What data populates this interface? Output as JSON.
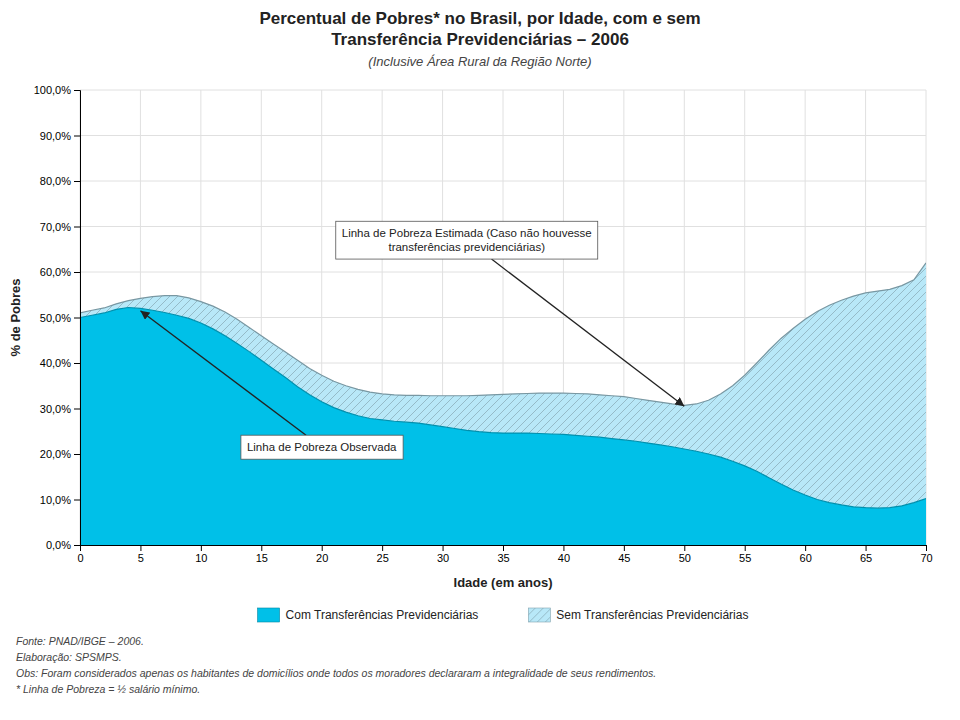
{
  "chart_data": {
    "type": "area",
    "title": [
      "Percentual de Pobres* no Brasil, por Idade, com e sem",
      "Transferência Previdenciárias – 2006"
    ],
    "subtitle": "(Inclusive Área Rural da Região Norte)",
    "x_label": "Idade (em anos)",
    "y_label": "% de Pobres",
    "x": [
      0,
      1,
      2,
      3,
      4,
      5,
      6,
      7,
      8,
      9,
      10,
      11,
      12,
      13,
      14,
      15,
      16,
      17,
      18,
      19,
      20,
      21,
      22,
      23,
      24,
      25,
      26,
      27,
      28,
      29,
      30,
      31,
      32,
      33,
      34,
      35,
      36,
      37,
      38,
      39,
      40,
      41,
      42,
      43,
      44,
      45,
      46,
      47,
      48,
      49,
      50,
      51,
      52,
      53,
      54,
      55,
      56,
      57,
      58,
      59,
      60,
      61,
      62,
      63,
      64,
      65,
      66,
      67,
      68,
      69,
      70
    ],
    "series": [
      {
        "name": "Com Transferências Previdenciárias",
        "color": "#00C0E8",
        "values": [
          0.5,
          0.505,
          0.51,
          0.518,
          0.522,
          0.52,
          0.516,
          0.511,
          0.505,
          0.498,
          0.488,
          0.475,
          0.46,
          0.443,
          0.425,
          0.406,
          0.387,
          0.368,
          0.348,
          0.33,
          0.315,
          0.302,
          0.292,
          0.284,
          0.278,
          0.275,
          0.272,
          0.27,
          0.268,
          0.264,
          0.26,
          0.256,
          0.252,
          0.249,
          0.247,
          0.246,
          0.246,
          0.246,
          0.245,
          0.244,
          0.243,
          0.241,
          0.239,
          0.237,
          0.234,
          0.231,
          0.228,
          0.224,
          0.22,
          0.216,
          0.211,
          0.206,
          0.2,
          0.193,
          0.184,
          0.174,
          0.162,
          0.148,
          0.134,
          0.121,
          0.11,
          0.1,
          0.093,
          0.088,
          0.084,
          0.082,
          0.081,
          0.082,
          0.086,
          0.093,
          0.102
        ]
      },
      {
        "name": "Sem Transferências Previdenciárias",
        "color": "#B8E8F8",
        "values": [
          0.51,
          0.516,
          0.521,
          0.53,
          0.537,
          0.542,
          0.546,
          0.548,
          0.548,
          0.543,
          0.535,
          0.525,
          0.512,
          0.496,
          0.478,
          0.46,
          0.442,
          0.424,
          0.406,
          0.388,
          0.373,
          0.36,
          0.35,
          0.342,
          0.336,
          0.332,
          0.33,
          0.329,
          0.329,
          0.328,
          0.328,
          0.328,
          0.328,
          0.329,
          0.33,
          0.331,
          0.332,
          0.333,
          0.334,
          0.334,
          0.334,
          0.333,
          0.332,
          0.33,
          0.328,
          0.326,
          0.322,
          0.318,
          0.314,
          0.31,
          0.307,
          0.31,
          0.318,
          0.332,
          0.35,
          0.373,
          0.4,
          0.428,
          0.454,
          0.476,
          0.496,
          0.513,
          0.527,
          0.538,
          0.547,
          0.554,
          0.558,
          0.562,
          0.57,
          0.583,
          0.62
        ]
      }
    ],
    "xlim": [
      0,
      70
    ],
    "xticks": [
      0,
      5,
      10,
      15,
      20,
      25,
      30,
      35,
      40,
      45,
      50,
      55,
      60,
      65,
      70
    ],
    "ylim": [
      0,
      1.0
    ],
    "yticks": [
      {
        "value": 0.0,
        "label": "0,0%"
      },
      {
        "value": 0.1,
        "label": "10,0%"
      },
      {
        "value": 0.2,
        "label": "20,0%"
      },
      {
        "value": 0.3,
        "label": "30,0%"
      },
      {
        "value": 0.4,
        "label": "40,0%"
      },
      {
        "value": 0.5,
        "label": "50,0%"
      },
      {
        "value": 0.6,
        "label": "60,0%"
      },
      {
        "value": 0.7,
        "label": "70,0%"
      },
      {
        "value": 0.8,
        "label": "80,0%"
      },
      {
        "value": 0.9,
        "label": "90,0%"
      },
      {
        "value": 1.0,
        "label": "100,0%"
      }
    ],
    "grid": true,
    "legend": "bottom",
    "annotations": [
      {
        "text": "Linha de Pobreza Estimada (Caso não houvesse\ntransferências previdenciárias)",
        "xy": [
          50,
          0.305
        ],
        "xytext": [
          32,
          0.67
        ]
      },
      {
        "text": "Linha de Pobreza Observada",
        "xy": [
          5,
          0.515
        ],
        "xytext": [
          20,
          0.215
        ]
      }
    ],
    "notes": [
      "Fonte: PNAD/IBGE – 2006.",
      "Elaboração: SPSMPS.",
      "Obs: Foram considerados apenas os habitantes de domicílios onde todos os moradores declararam a integralidade de seus rendimentos.",
      "* Linha de Pobreza = ½ salário mínimo."
    ]
  }
}
